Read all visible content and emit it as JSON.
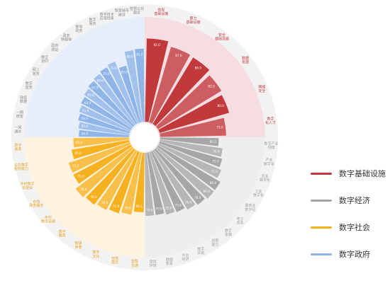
{
  "chart_data": {
    "type": "radial-bar",
    "title": "",
    "groups": [
      {
        "name": "数字基础设施",
        "color": "#c0393b",
        "light": "#f5dde2",
        "label_color": "#c0393b",
        "categories": [
          "信息\n基础设施",
          "算力\n基础设施",
          "安全\n基础设施",
          "数据\n资源",
          "网络\n安全",
          "数字\n化人才"
        ],
        "values": [
          92.0,
          87.0,
          86.0,
          82.0,
          80.0,
          73.0
        ]
      },
      {
        "name": "数字经济",
        "color": "#a6a6a6",
        "light": "#eeeeee",
        "label_color": "#a0a0a0",
        "categories": [
          "数字产业\n规模",
          "产业\n数字化",
          "农业\n数字化",
          "工业\n数字化",
          "服务业\n数字化",
          "电子\n商务",
          "数字\n金融",
          "创新\n能力",
          "数字\n贸易",
          "平台\n经济",
          "数据\n要素",
          "营商\n环境"
        ],
        "values": [
          65.0,
          70.0,
          72.0,
          75.0,
          80.0,
          80.0,
          78.0,
          76.0,
          73.0,
          72.0,
          70.0,
          70.0
        ]
      },
      {
        "name": "数字社会",
        "color": "#f6b121",
        "light": "#fdf3de",
        "label_color": "#e8a11a",
        "categories": [
          "智慧\n交通",
          "智慧\n医疗",
          "数字\n文化",
          "智慧\n养老",
          "数字\n教育",
          "乡村\n数字治理",
          "在线\n政务服务",
          "乡村数字\n化建设",
          "公共数字\n服务能力",
          "数字\n素养"
        ],
        "values": [
          66.1,
          70.0,
          72.0,
          74.0,
          76.0,
          78.0,
          72.0,
          71.7,
          65.0,
          62.0
        ]
      },
      {
        "name": "数字政府",
        "color": "#8eb4e8",
        "light": "#e6eef9",
        "label_color": "#8a8a8a",
        "categories": [
          "一网\n通办",
          "一网\n统管",
          "政务\n数据",
          "数字\n监管",
          "网上\n政务",
          "数字\n协同",
          "政府\n网站",
          "政务\n新媒体",
          "移动\n政务",
          "数字\n服务",
          "数字技术\n应用场景",
          "智慧城市\n建设",
          "智慧公共\n服务"
        ],
        "values": [
          56.0,
          57.0,
          59.0,
          61.0,
          63.0,
          65.0,
          67.0,
          69.0,
          71.0,
          73.0,
          65.0,
          80.0,
          81.0
        ]
      }
    ],
    "bar_value_labels": [
      [
        "92.0",
        "87.0",
        "86.0",
        "82.0",
        "80.0",
        "73.0"
      ],
      [
        "65.0",
        "70.0",
        "72.0",
        "75.0",
        "80.0",
        "80.0",
        "78.0",
        "76.0",
        "73.0",
        "72.0",
        "70.0",
        "70.0"
      ],
      [
        "66.1",
        "70.0",
        "72.0",
        "74.0",
        "76.0",
        "78.0",
        "72.0",
        "71.7",
        "65.0",
        "62.0"
      ],
      [
        "56.0",
        "57.0",
        "59.0",
        "61.0",
        "63.0",
        "65.0",
        "67.0",
        "69.0",
        "71.0",
        "73.0",
        "65.0",
        "80.0",
        "81.0"
      ]
    ],
    "radial_range": [
      0,
      100
    ],
    "legend_position": "right"
  }
}
